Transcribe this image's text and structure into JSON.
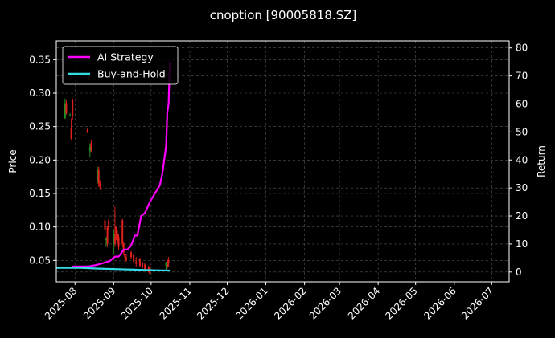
{
  "chart_data": {
    "type": "line",
    "title": "cnoption [90005818.SZ]",
    "ylabel_left": "Price",
    "ylabel_right": "Return",
    "ylim_left": [
      0.018,
      0.378
    ],
    "ylim_right": [
      -3.5,
      82.5
    ],
    "yticks_left": [
      0.05,
      0.1,
      0.15,
      0.2,
      0.25,
      0.3,
      0.35
    ],
    "yticks_left_labels": [
      "0.05",
      "0.10",
      "0.15",
      "0.20",
      "0.25",
      "0.30",
      "0.35"
    ],
    "yticks_right": [
      0,
      10,
      20,
      30,
      40,
      50,
      60,
      70,
      80
    ],
    "xlim": [
      "2025-07-17",
      "2026-07-15"
    ],
    "xticks": [
      "2025-08-01",
      "2025-09-01",
      "2025-10-01",
      "2025-11-01",
      "2025-12-01",
      "2026-01-01",
      "2026-02-01",
      "2026-03-01",
      "2026-04-01",
      "2026-05-01",
      "2026-06-01",
      "2026-07-01"
    ],
    "xtick_labels": [
      "2025-08",
      "2025-09",
      "2025-10",
      "2025-11",
      "2025-12",
      "2026-01",
      "2026-02",
      "2026-03",
      "2026-04",
      "2026-05",
      "2026-06",
      "2026-07"
    ],
    "grid": true,
    "legend": {
      "placement": "top-left",
      "entries": [
        "AI Strategy",
        "Buy-and-Hold"
      ]
    },
    "colors": {
      "background": "#000000",
      "ai": "#ff00ff",
      "bh": "#33dde6",
      "up": "#1f8f1f",
      "down": "#e0201c",
      "grid": "#555555"
    },
    "series": [
      {
        "name": "AI Strategy",
        "axis": "right",
        "x": [
          "2025-07-30",
          "2025-08-05",
          "2025-08-12",
          "2025-08-18",
          "2025-08-22",
          "2025-08-26",
          "2025-08-29",
          "2025-09-02",
          "2025-09-05",
          "2025-09-09",
          "2025-09-12",
          "2025-09-15",
          "2025-09-18",
          "2025-09-20",
          "2025-09-23",
          "2025-09-26",
          "2025-09-30",
          "2025-10-08",
          "2025-10-10",
          "2025-10-13",
          "2025-10-14",
          "2025-10-15",
          "2025-10-16"
        ],
        "values": [
          2.0,
          2.0,
          2.0,
          2.5,
          3.0,
          3.5,
          4.0,
          5.5,
          5.5,
          8.0,
          8.0,
          9.5,
          13.0,
          13.0,
          20.0,
          21.0,
          25.0,
          31.0,
          35.0,
          45.0,
          57.0,
          60.0,
          75.0
        ]
      },
      {
        "name": "Buy-and-Hold",
        "axis": "right",
        "x": [
          "2025-07-17",
          "2025-08-05",
          "2025-08-20",
          "2025-09-05",
          "2025-09-20",
          "2025-10-05",
          "2025-10-16"
        ],
        "values": [
          1.5,
          1.5,
          1.2,
          1.0,
          0.8,
          0.6,
          0.5
        ]
      }
    ],
    "candles": {
      "axis": "left",
      "dates": [
        "2025-07-24",
        "2025-07-25",
        "2025-07-28",
        "2025-07-29",
        "2025-07-30",
        "2025-08-11",
        "2025-08-13",
        "2025-08-14",
        "2025-08-19",
        "2025-08-20",
        "2025-08-21",
        "2025-08-25",
        "2025-08-26",
        "2025-08-27",
        "2025-08-28",
        "2025-09-01",
        "2025-09-02",
        "2025-09-03",
        "2025-09-04",
        "2025-09-05",
        "2025-09-08",
        "2025-09-09",
        "2025-09-10",
        "2025-09-11",
        "2025-09-15",
        "2025-09-17",
        "2025-09-19",
        "2025-09-22",
        "2025-09-24",
        "2025-09-26",
        "2025-09-29",
        "2025-09-30",
        "2025-10-13",
        "2025-10-14",
        "2025-10-15"
      ],
      "open": [
        0.262,
        0.285,
        0.268,
        0.248,
        0.29,
        0.245,
        0.213,
        0.225,
        0.17,
        0.185,
        0.165,
        0.11,
        0.08,
        0.1,
        0.11,
        0.075,
        0.085,
        0.1,
        0.09,
        0.085,
        0.11,
        0.075,
        0.06,
        0.055,
        0.062,
        0.058,
        0.048,
        0.052,
        0.047,
        0.044,
        0.04,
        0.038,
        0.042,
        0.045,
        0.05
      ],
      "high": [
        0.292,
        0.29,
        0.27,
        0.262,
        0.292,
        0.248,
        0.225,
        0.23,
        0.19,
        0.19,
        0.17,
        0.118,
        0.085,
        0.102,
        0.112,
        0.095,
        0.13,
        0.102,
        0.095,
        0.09,
        0.112,
        0.078,
        0.064,
        0.06,
        0.064,
        0.06,
        0.055,
        0.054,
        0.048,
        0.046,
        0.042,
        0.04,
        0.048,
        0.052,
        0.055
      ],
      "low": [
        0.262,
        0.268,
        0.265,
        0.23,
        0.26,
        0.24,
        0.205,
        0.212,
        0.165,
        0.16,
        0.155,
        0.09,
        0.07,
        0.07,
        0.095,
        0.06,
        0.07,
        0.08,
        0.075,
        0.065,
        0.07,
        0.058,
        0.052,
        0.048,
        0.052,
        0.045,
        0.04,
        0.04,
        0.038,
        0.035,
        0.032,
        0.028,
        0.035,
        0.038,
        0.04
      ],
      "close": [
        0.285,
        0.27,
        0.268,
        0.232,
        0.265,
        0.242,
        0.22,
        0.215,
        0.185,
        0.165,
        0.16,
        0.095,
        0.082,
        0.075,
        0.1,
        0.09,
        0.075,
        0.085,
        0.08,
        0.07,
        0.075,
        0.062,
        0.055,
        0.05,
        0.055,
        0.048,
        0.045,
        0.042,
        0.04,
        0.036,
        0.033,
        0.03,
        0.046,
        0.04,
        0.046
      ]
    }
  }
}
